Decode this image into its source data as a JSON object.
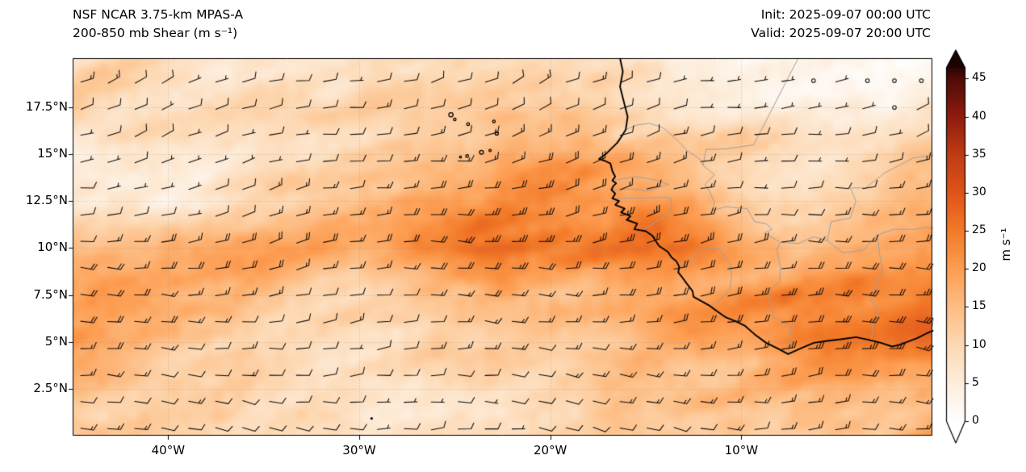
{
  "header": {
    "title_line1": "NSF NCAR 3.75-km MPAS-A",
    "title_line2": "200-850 mb Shear (m s⁻¹)",
    "init_label": "Init: 2025-09-07 00:00 UTC",
    "valid_label": "Valid: 2025-09-07 20:00 UTC"
  },
  "chart_data": {
    "type": "heatmap",
    "title": "200-850 mb Shear (m s⁻¹)",
    "model": "NSF NCAR 3.75-km MPAS-A",
    "init_time": "2025-09-07 00:00 UTC",
    "valid_time": "2025-09-07 20:00 UTC",
    "projection": "plate-carree",
    "lon_range": [
      -45,
      0
    ],
    "lat_range": [
      0,
      20.12
    ],
    "grid_on": true,
    "x_ticks": [
      {
        "lon": -40,
        "label": "40°W"
      },
      {
        "lon": -30,
        "label": "30°W"
      },
      {
        "lon": -20,
        "label": "20°W"
      },
      {
        "lon": -10,
        "label": "10°W"
      }
    ],
    "y_ticks": [
      {
        "lat": 17.5,
        "label": "17.5°N"
      },
      {
        "lat": 15,
        "label": "15°N"
      },
      {
        "lat": 12.5,
        "label": "12.5°N"
      },
      {
        "lat": 10,
        "label": "10°N"
      },
      {
        "lat": 7.5,
        "label": "7.5°N"
      },
      {
        "lat": 5,
        "label": "5°N"
      },
      {
        "lat": 2.5,
        "label": "2.5°N"
      }
    ],
    "colorbar": {
      "label": "m s⁻¹",
      "ticks": [
        0,
        5,
        10,
        15,
        20,
        25,
        30,
        35,
        40,
        45
      ],
      "vmin": 0,
      "vmax": 47.2,
      "extend": "both",
      "stops": [
        [
          0,
          "#ffffff"
        ],
        [
          5,
          "#fdeedd"
        ],
        [
          10,
          "#fdd9b4"
        ],
        [
          15,
          "#fdbe85"
        ],
        [
          20,
          "#fd9e53"
        ],
        [
          25,
          "#f37b29"
        ],
        [
          30,
          "#e0541b"
        ],
        [
          35,
          "#c03d14"
        ],
        [
          40,
          "#8f1d0e"
        ],
        [
          45,
          "#500c07"
        ],
        [
          47.2,
          "#1a0402"
        ]
      ]
    },
    "shear_grid": {
      "units": "m s⁻¹",
      "lons": [
        -45,
        -40,
        -35,
        -30,
        -25,
        -20,
        -15,
        -10,
        -5,
        0
      ],
      "lats": [
        20,
        17.5,
        15,
        12.5,
        10,
        7.5,
        5,
        2.5,
        0
      ],
      "values": [
        [
          9,
          8,
          8,
          10,
          12,
          12,
          10,
          5,
          3,
          4
        ],
        [
          12,
          10,
          9,
          11,
          13,
          13,
          12,
          8,
          5,
          6
        ],
        [
          5,
          5,
          8,
          12,
          16,
          18,
          16,
          12,
          8,
          12
        ],
        [
          5,
          6,
          8,
          15,
          20,
          23,
          21,
          14,
          9,
          14
        ],
        [
          16,
          17,
          17,
          18,
          25,
          27,
          26,
          19,
          16,
          18
        ],
        [
          17,
          18,
          15,
          11,
          12,
          16,
          20,
          21,
          24,
          28
        ],
        [
          18,
          16,
          12,
          8,
          9,
          12,
          16,
          18,
          24,
          30
        ],
        [
          16,
          12,
          10,
          9,
          10,
          12,
          14,
          14,
          16,
          18
        ],
        [
          14,
          12,
          10,
          9,
          10,
          11,
          13,
          13,
          14,
          15
        ]
      ]
    },
    "wind_barbs": {
      "units": "m s⁻¹",
      "full_barb": 10,
      "half_barb": 5,
      "calm_circle_below": 2.5,
      "spacing_px": 33
    }
  },
  "map_layers": {
    "coastline_color": "#000000",
    "border_color": "#a0a0a0",
    "coastlines": [
      [
        [
          -16.35,
          20.12
        ],
        [
          -16.2,
          19.4
        ],
        [
          -16.35,
          18.6
        ],
        [
          -16.15,
          17.8
        ],
        [
          -15.95,
          17.0
        ],
        [
          -16.05,
          16.3
        ],
        [
          -16.3,
          15.9
        ],
        [
          -16.5,
          15.6
        ],
        [
          -17.1,
          15.0
        ],
        [
          -17.45,
          14.75
        ],
        [
          -17.15,
          14.65
        ],
        [
          -16.85,
          14.5
        ],
        [
          -16.75,
          14.1
        ],
        [
          -16.6,
          13.8
        ],
        [
          -16.75,
          13.6
        ],
        [
          -16.55,
          13.45
        ],
        [
          -16.7,
          13.3
        ],
        [
          -16.8,
          13.1
        ],
        [
          -16.6,
          12.9
        ],
        [
          -16.75,
          12.65
        ],
        [
          -16.4,
          12.5
        ],
        [
          -16.6,
          12.3
        ],
        [
          -16.1,
          12.1
        ],
        [
          -16.3,
          11.9
        ],
        [
          -15.8,
          11.7
        ],
        [
          -16.0,
          11.5
        ],
        [
          -15.45,
          11.3
        ],
        [
          -15.6,
          11.0
        ],
        [
          -15.0,
          10.9
        ],
        [
          -14.65,
          10.65
        ],
        [
          -14.5,
          10.4
        ],
        [
          -14.3,
          10.1
        ],
        [
          -13.85,
          9.8
        ],
        [
          -13.65,
          9.5
        ],
        [
          -13.4,
          9.3
        ],
        [
          -13.25,
          9.0
        ],
        [
          -13.3,
          8.7
        ],
        [
          -13.1,
          8.45
        ],
        [
          -12.85,
          8.1
        ],
        [
          -12.55,
          7.7
        ],
        [
          -12.5,
          7.4
        ],
        [
          -11.7,
          6.95
        ],
        [
          -11.3,
          6.65
        ],
        [
          -10.8,
          6.3
        ],
        [
          -10.3,
          6.1
        ],
        [
          -9.8,
          5.85
        ],
        [
          -9.3,
          5.4
        ],
        [
          -8.7,
          4.95
        ],
        [
          -8.1,
          4.65
        ],
        [
          -7.55,
          4.35
        ],
        [
          -6.9,
          4.65
        ],
        [
          -6.2,
          4.95
        ],
        [
          -5.5,
          5.05
        ],
        [
          -4.7,
          5.15
        ],
        [
          -4.0,
          5.25
        ],
        [
          -3.3,
          5.1
        ],
        [
          -2.7,
          4.95
        ],
        [
          -2.1,
          4.75
        ],
        [
          -1.7,
          4.85
        ],
        [
          -1.3,
          5.0
        ],
        [
          -0.8,
          5.2
        ],
        [
          -0.3,
          5.45
        ],
        [
          0.05,
          5.6
        ]
      ]
    ],
    "islands": [
      {
        "name": "santo-antao",
        "lon": -25.2,
        "lat": 17.1,
        "r": 2.6
      },
      {
        "name": "sao-vicente",
        "lon": -25.0,
        "lat": 16.85,
        "r": 1.6
      },
      {
        "name": "sao-nicolau",
        "lon": -24.3,
        "lat": 16.6,
        "r": 1.7
      },
      {
        "name": "sal",
        "lon": -22.95,
        "lat": 16.75,
        "r": 1.6
      },
      {
        "name": "boa-vista",
        "lon": -22.8,
        "lat": 16.1,
        "r": 2.0
      },
      {
        "name": "maio",
        "lon": -23.15,
        "lat": 15.2,
        "r": 1.4
      },
      {
        "name": "santiago",
        "lon": -23.6,
        "lat": 15.1,
        "r": 2.4
      },
      {
        "name": "fogo",
        "lon": -24.35,
        "lat": 14.9,
        "r": 1.7
      },
      {
        "name": "brava",
        "lon": -24.7,
        "lat": 14.85,
        "r": 1.2
      }
    ],
    "rocks": [
      {
        "name": "sao-pedro-sao-paulo",
        "lon": -29.35,
        "lat": 0.92
      }
    ],
    "borders": [
      [
        [
          -16.05,
          16.3
        ],
        [
          -15.5,
          16.55
        ],
        [
          -14.8,
          16.65
        ],
        [
          -14.1,
          16.4
        ],
        [
          -13.4,
          15.8
        ],
        [
          -12.85,
          15.2
        ],
        [
          -12.2,
          14.77
        ],
        [
          -12.0,
          14.4
        ]
      ],
      [
        [
          -12.0,
          14.4
        ],
        [
          -11.85,
          15.25
        ],
        [
          -10.8,
          15.28
        ],
        [
          -9.35,
          15.5
        ],
        [
          -7.02,
          20.12
        ]
      ],
      [
        [
          -12.0,
          14.4
        ],
        [
          -11.4,
          13.9
        ],
        [
          -11.9,
          13.4
        ],
        [
          -11.6,
          12.9
        ],
        [
          -11.4,
          12.4
        ],
        [
          -11.5,
          12.0
        ]
      ],
      [
        [
          -16.75,
          13.6
        ],
        [
          -15.5,
          13.8
        ],
        [
          -14.6,
          13.65
        ],
        [
          -13.8,
          13.4
        ]
      ],
      [
        [
          -16.8,
          13.1
        ],
        [
          -15.8,
          13.15
        ],
        [
          -14.9,
          13.05
        ],
        [
          -13.8,
          13.4
        ]
      ],
      [
        [
          -16.75,
          12.65
        ],
        [
          -15.6,
          12.65
        ],
        [
          -14.5,
          12.68
        ],
        [
          -13.7,
          12.68
        ],
        [
          -13.65,
          12.25
        ],
        [
          -13.7,
          11.9
        ]
      ],
      [
        [
          -15.05,
          11.05
        ],
        [
          -14.3,
          11.5
        ],
        [
          -13.7,
          11.9
        ]
      ],
      [
        [
          -13.3,
          9.05
        ],
        [
          -12.6,
          9.4
        ],
        [
          -12.1,
          9.9
        ],
        [
          -11.2,
          10.0
        ],
        [
          -10.6,
          9.2
        ],
        [
          -10.5,
          8.5
        ]
      ],
      [
        [
          -11.5,
          6.9
        ],
        [
          -10.6,
          7.8
        ],
        [
          -10.5,
          8.5
        ]
      ],
      [
        [
          -7.55,
          4.35
        ],
        [
          -7.45,
          5.3
        ],
        [
          -7.4,
          5.85
        ],
        [
          -8.3,
          6.3
        ],
        [
          -8.6,
          7.7
        ],
        [
          -8.0,
          8.2
        ],
        [
          -7.95,
          9.0
        ],
        [
          -8.15,
          9.9
        ],
        [
          -7.95,
          10.3
        ]
      ],
      [
        [
          -11.5,
          12.0
        ],
        [
          -10.8,
          12.2
        ],
        [
          -9.7,
          12.1
        ],
        [
          -9.3,
          11.4
        ],
        [
          -8.7,
          11.3
        ],
        [
          -8.4,
          11.0
        ],
        [
          -8.8,
          10.8
        ],
        [
          -7.95,
          10.3
        ]
      ],
      [
        [
          -3.2,
          5.1
        ],
        [
          -3.1,
          5.9
        ],
        [
          -2.8,
          6.6
        ],
        [
          -3.2,
          7.2
        ],
        [
          -2.95,
          8.1
        ],
        [
          -2.6,
          8.8
        ],
        [
          -2.75,
          9.6
        ],
        [
          -2.9,
          10.7
        ]
      ],
      [
        [
          -7.95,
          10.3
        ],
        [
          -7.0,
          10.25
        ],
        [
          -6.2,
          10.6
        ],
        [
          -5.5,
          10.4
        ],
        [
          -4.7,
          9.75
        ],
        [
          -4.2,
          9.8
        ],
        [
          -3.6,
          9.9
        ],
        [
          -2.9,
          10.7
        ]
      ],
      [
        [
          -2.9,
          10.7
        ],
        [
          -2.0,
          11.0
        ],
        [
          -0.9,
          11.0
        ],
        [
          -0.3,
          11.1
        ],
        [
          0.05,
          11.05
        ]
      ],
      [
        [
          -5.5,
          10.4
        ],
        [
          -5.3,
          11.4
        ],
        [
          -4.3,
          11.6
        ],
        [
          -4.0,
          12.5
        ],
        [
          -4.3,
          13.2
        ],
        [
          -3.5,
          13.2
        ],
        [
          -2.5,
          14.0
        ],
        [
          -1.0,
          14.8
        ],
        [
          0.05,
          14.95
        ]
      ],
      [
        [
          0.0,
          5.8
        ],
        [
          0.05,
          6.2
        ]
      ]
    ]
  }
}
